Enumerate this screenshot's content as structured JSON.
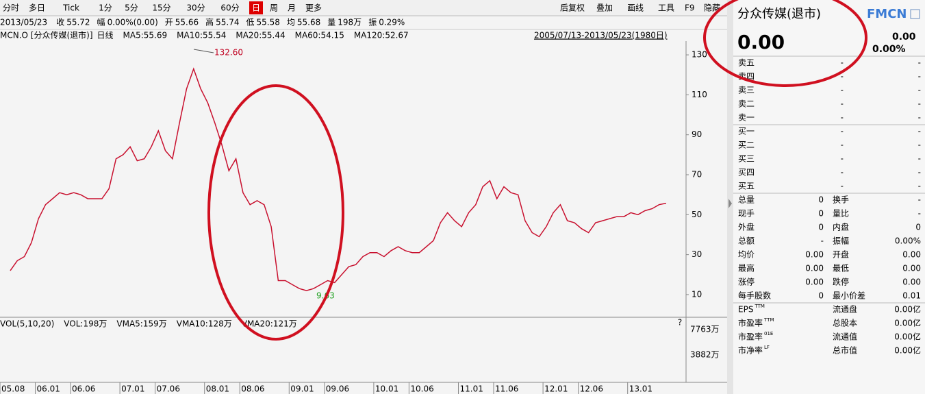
{
  "toolbar": {
    "left": [
      "分时",
      "多日",
      "Tick",
      "1分",
      "5分",
      "15分",
      "30分",
      "60分",
      "日",
      "周",
      "月",
      "更多"
    ],
    "right": [
      "后复权",
      "叠加",
      "画线",
      "工具",
      "F9",
      "隐藏"
    ]
  },
  "quote_bar": [
    {
      "label": "2013/05/23",
      "value": "",
      "color": "#000"
    },
    {
      "label": "收",
      "value": "55.72",
      "color": "#000"
    },
    {
      "label": "幅",
      "value": "0.00%(0.00)",
      "color": "#000"
    },
    {
      "label": "开",
      "value": "55.66",
      "color": "#0a0"
    },
    {
      "label": "高",
      "value": "55.74",
      "color": "#d00"
    },
    {
      "label": "低",
      "value": "55.58",
      "color": "#0a0"
    },
    {
      "label": "均",
      "value": "55.68",
      "color": "#0a0"
    },
    {
      "label": "量",
      "value": "198万",
      "color": "#000"
    },
    {
      "label": "振",
      "value": "0.29%",
      "color": "#000"
    }
  ],
  "legend": {
    "symbol": "MCN.O [分众传媒(退市)]",
    "items": [
      {
        "text": "日线",
        "color": "#d00"
      },
      {
        "text": "MA5:55.69",
        "color": "#c02050"
      },
      {
        "text": "MA10:55.54",
        "color": "#1aa0d0"
      },
      {
        "text": "MA20:55.44",
        "color": "#2040b0"
      },
      {
        "text": "MA60:54.15",
        "color": "#20b0b0"
      },
      {
        "text": "MA120:52.67",
        "color": "#20a020"
      }
    ]
  },
  "date_range": "2005/07/13-2013/05/23(1980日)",
  "chart_data": {
    "type": "line",
    "color": "#c8102e",
    "categories": [
      "05.08",
      null,
      null,
      null,
      null,
      "06.01",
      null,
      null,
      null,
      null,
      "06.06",
      null,
      null,
      null,
      null,
      null,
      null,
      "07.01",
      null,
      null,
      null,
      null,
      "07.06",
      null,
      null,
      null,
      null,
      null,
      null,
      "08.01",
      null,
      null,
      null,
      null,
      "08.06",
      null,
      null,
      null,
      null,
      null,
      null,
      "09.01",
      null,
      null,
      null,
      null,
      "09.06",
      null,
      null,
      null,
      null,
      null,
      null,
      "10.01",
      null,
      null,
      null,
      null,
      "10.06",
      null,
      null,
      null,
      null,
      null,
      null,
      "11.01",
      null,
      null,
      null,
      null,
      "11.06",
      null,
      null,
      null,
      null,
      null,
      null,
      "12.01",
      null,
      null,
      null,
      null,
      "12.06",
      null,
      null,
      null,
      null,
      null,
      null,
      "13.01",
      null,
      null,
      null,
      null
    ],
    "values": [
      22,
      27,
      29,
      36,
      48,
      55,
      58,
      61,
      60,
      61,
      60,
      58,
      58,
      58,
      63,
      78,
      80,
      84,
      77,
      78,
      84,
      92,
      82,
      78,
      96,
      113,
      123,
      113,
      106,
      96,
      85,
      72,
      78,
      61,
      55,
      57,
      55,
      44,
      17,
      17,
      15,
      13,
      12,
      13,
      15,
      17,
      16,
      20,
      24,
      25,
      29,
      31,
      31,
      29,
      32,
      34,
      32,
      31,
      31,
      34,
      37,
      46,
      51,
      47,
      44,
      51,
      55,
      64,
      67,
      58,
      64,
      61,
      60,
      47,
      41,
      39,
      44,
      51,
      55,
      47,
      46,
      43,
      41,
      46,
      47,
      48,
      49,
      49,
      51,
      50,
      52,
      53,
      55,
      55.72
    ],
    "ylim": [
      -1,
      141
    ],
    "yticks": [
      10,
      30,
      50,
      70,
      90,
      110,
      130
    ],
    "annotations": [
      "132.60",
      "9.63"
    ]
  },
  "volume_panel": {
    "legend": [
      {
        "text": "VOL(5,10,20)",
        "color": "#000"
      },
      {
        "text": "VOL:198万",
        "color": "#d00"
      },
      {
        "text": "VMA5:159万",
        "color": "#c02050"
      },
      {
        "text": "VMA10:128万",
        "color": "#1aa040"
      },
      {
        "text": "VMA20:121万",
        "color": "#000"
      }
    ],
    "ticks": [
      "7763万",
      "3882万"
    ],
    "help": "?"
  },
  "quote_panel": {
    "name": "分众传媒(退市)",
    "code": "FMCN",
    "price": "0.00",
    "change": "0.00",
    "change_pct": "0.00%",
    "asks": [
      {
        "label": "卖五",
        "price": "-",
        "vol": "-"
      },
      {
        "label": "卖四",
        "price": "-",
        "vol": "-"
      },
      {
        "label": "卖三",
        "price": "-",
        "vol": "-"
      },
      {
        "label": "卖二",
        "price": "-",
        "vol": "-"
      },
      {
        "label": "卖一",
        "price": "-",
        "vol": "-"
      }
    ],
    "bids": [
      {
        "label": "买一",
        "price": "-",
        "vol": "-"
      },
      {
        "label": "买二",
        "price": "-",
        "vol": "-"
      },
      {
        "label": "买三",
        "price": "-",
        "vol": "-"
      },
      {
        "label": "买四",
        "price": "-",
        "vol": "-"
      },
      {
        "label": "买五",
        "price": "-",
        "vol": "-"
      }
    ],
    "stats": [
      [
        "总量",
        "0",
        "换手",
        "-"
      ],
      [
        "现手",
        "0",
        "量比",
        "-"
      ],
      [
        "外盘",
        "0",
        "内盘",
        "0"
      ],
      [
        "总额",
        "-",
        "振幅",
        "0.00%"
      ],
      [
        "均价",
        "0.00",
        "开盘",
        "0.00"
      ],
      [
        "最高",
        "0.00",
        "最低",
        "0.00"
      ],
      [
        "涨停",
        "0.00",
        "跌停",
        "0.00"
      ],
      [
        "每手股数",
        "0",
        "最小价差",
        "0.01"
      ]
    ],
    "finance": [
      {
        "label": "EPS",
        "sup": "TTM",
        "right_label": "流通盘",
        "right_value": "0.00亿"
      },
      {
        "label": "市盈率",
        "sup": "TTM",
        "right_label": "总股本",
        "right_value": "0.00亿"
      },
      {
        "label": "市盈率",
        "sup": "01E",
        "right_label": "流通值",
        "right_value": "0.00亿"
      },
      {
        "label": "市净率",
        "sup": "LF",
        "right_label": "总市值",
        "right_value": "0.00亿"
      }
    ]
  }
}
